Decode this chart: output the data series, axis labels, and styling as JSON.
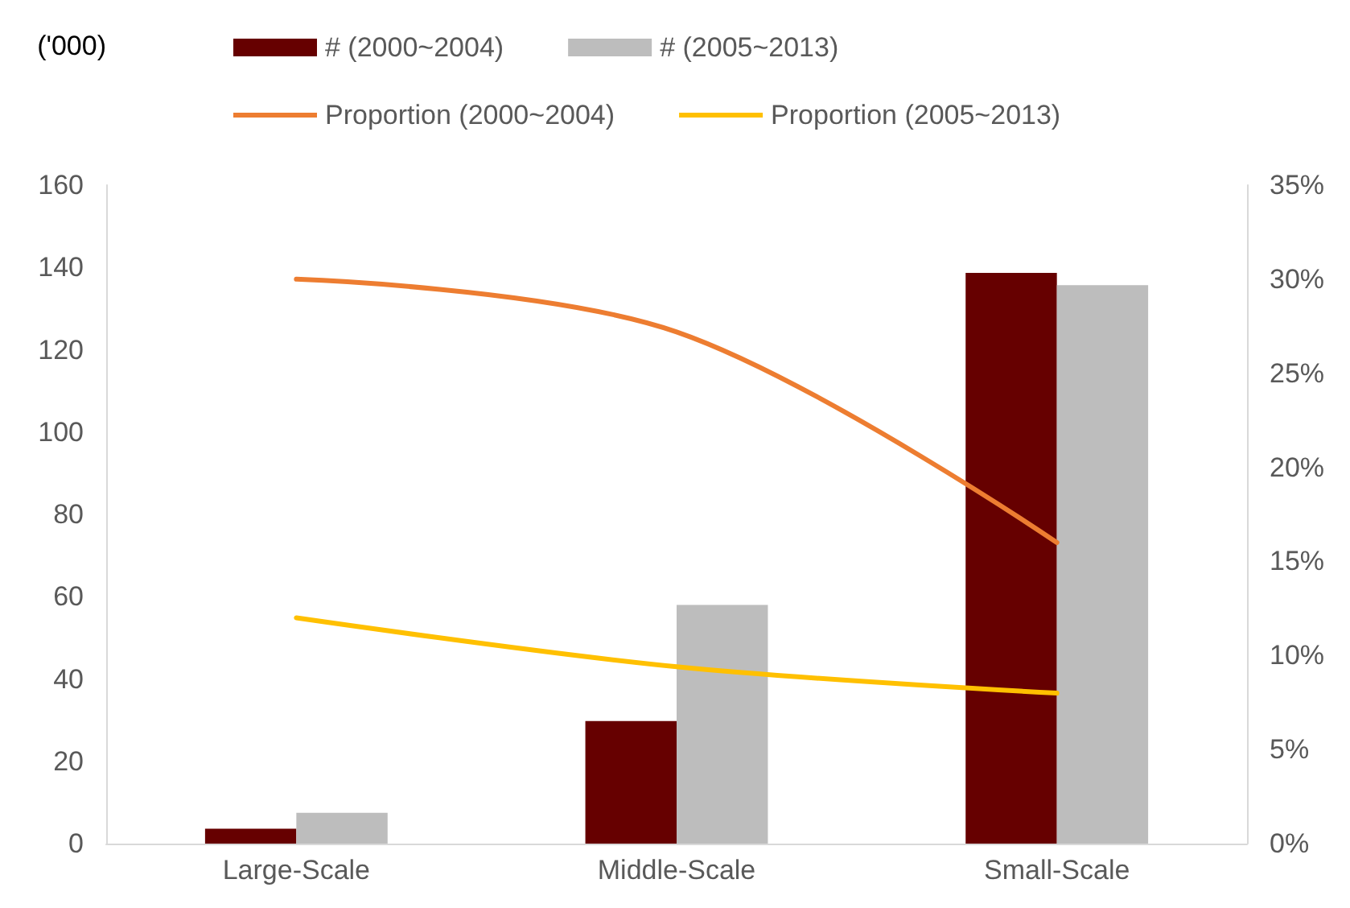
{
  "chart_data": {
    "type": "bar",
    "ylabel": "('000)",
    "categories": [
      "Large-Scale",
      "Middle-Scale",
      "Small-Scale"
    ],
    "series": [
      {
        "name": "# (2000~2004)",
        "color": "#660000",
        "values": [
          3.6,
          29.8,
          138.7
        ]
      },
      {
        "name": "# (2005~2013)",
        "color": "#bdbdbd",
        "values": [
          7.5,
          58,
          135.7
        ]
      },
      {
        "name": "Proportion (2000~2004)",
        "type": "line",
        "axis": "y2",
        "color": "#ed7d31",
        "values": [
          30,
          27.2,
          16
        ]
      },
      {
        "name": "Proportion (2005~2013)",
        "type": "line",
        "axis": "y2",
        "color": "#ffc000",
        "values": [
          12,
          9.4,
          8
        ]
      }
    ],
    "ylim": [
      0,
      160
    ],
    "yticks": [
      0,
      20,
      40,
      60,
      80,
      100,
      120,
      140,
      160
    ],
    "y2lim": [
      0,
      35
    ],
    "y2ticks": [
      {
        "value": 0,
        "label": "0%"
      },
      {
        "value": 5,
        "label": "5%"
      },
      {
        "value": 10,
        "label": "10%"
      },
      {
        "value": 15,
        "label": "15%"
      },
      {
        "value": 20,
        "label": "20%"
      },
      {
        "value": 25,
        "label": "25%"
      },
      {
        "value": 30,
        "label": "30%"
      },
      {
        "value": 35,
        "label": "35%"
      }
    ],
    "grid": false,
    "legend": "top",
    "marker": "none",
    "line_style": "solid"
  }
}
